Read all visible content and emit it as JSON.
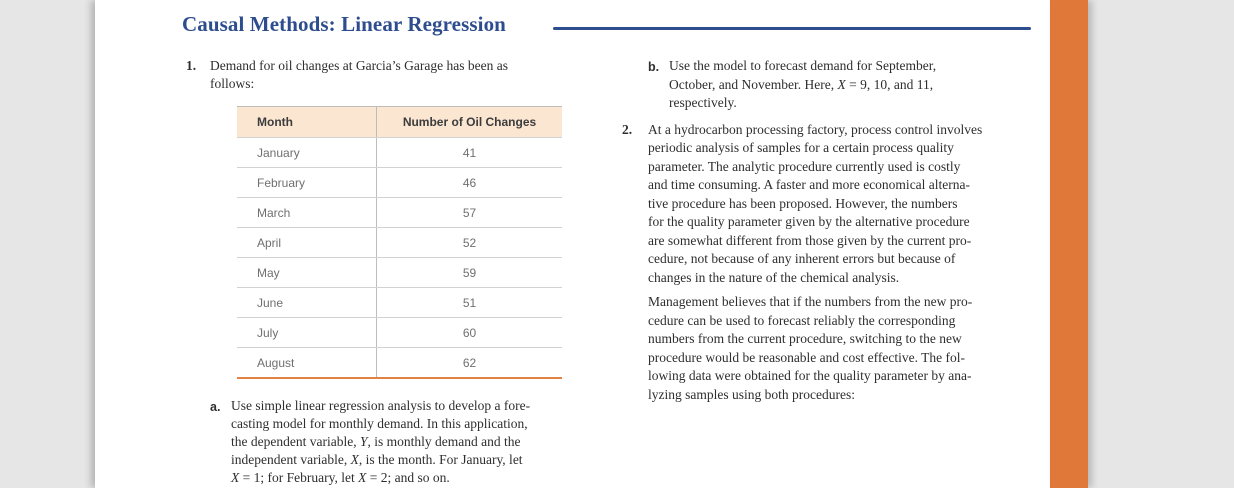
{
  "page": {
    "title": "Causal Methods: Linear Regression"
  },
  "colors": {
    "heading_blue": "#2d4d8e",
    "accent_orange_strip": "#e0783a",
    "table_header_bg": "#fbe6d2",
    "table_bottom_border_orange": "#e08145",
    "page_background": "#ffffff",
    "desktop_background": "#e6e6e6"
  },
  "problem1": {
    "number": "1.",
    "intro_lines": [
      "Demand for oil changes at Garcia’s Garage has been as",
      "follows:"
    ],
    "table": {
      "headers": [
        "Month",
        "Number of Oil Changes"
      ],
      "rows": [
        [
          "January",
          "41"
        ],
        [
          "February",
          "46"
        ],
        [
          "March",
          "57"
        ],
        [
          "April",
          "52"
        ],
        [
          "May",
          "59"
        ],
        [
          "June",
          "51"
        ],
        [
          "July",
          "60"
        ],
        [
          "August",
          "62"
        ]
      ]
    },
    "part_a": {
      "label": "a.",
      "lines": [
        "Use simple linear regression analysis to develop a fore-",
        "casting model for monthly demand. In this application,",
        "the dependent variable, <i>Y</i>, is monthly demand and the",
        "independent variable, <i>X</i>, is the month. For January, let",
        "<i>X</i> = 1; for February, let <i>X</i> = 2; and so on."
      ]
    },
    "part_b": {
      "label": "b.",
      "lines": [
        "Use the model to forecast demand for September,",
        "October, and November. Here, <i>X</i> = 9, 10, and 11,",
        "respectively."
      ]
    }
  },
  "problem2": {
    "number": "2.",
    "para1_lines": [
      "At a hydrocarbon processing factory, process control involves",
      "periodic analysis of samples for a certain process quality",
      "parameter. The analytic procedure currently used is costly",
      "and time consuming. A faster and more economical alterna-",
      "tive procedure has been proposed. However, the numbers",
      "for the quality parameter given by the alternative procedure",
      "are somewhat different from those given by the current pro-",
      "cedure, not because of any inherent errors but because of",
      "changes in the nature of the chemical analysis."
    ],
    "para2_lines": [
      "Management believes that if the numbers from the new pro-",
      "cedure can be used to forecast reliably the corresponding",
      "numbers from the current procedure, switching to the new",
      "procedure would be reasonable and cost effective. The fol-",
      "lowing data were obtained for the quality parameter by ana-",
      "lyzing samples using both procedures:"
    ]
  }
}
